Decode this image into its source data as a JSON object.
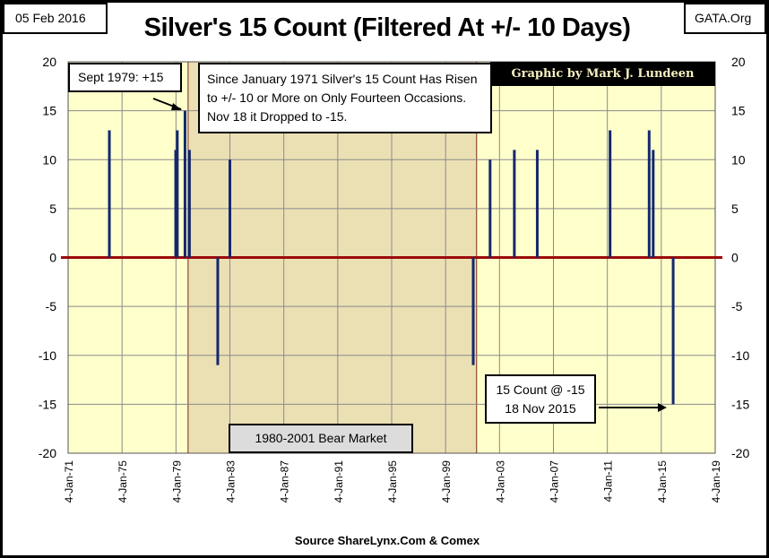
{
  "chart_data": {
    "type": "bar",
    "title": "Silver's 15 Count (Filtered At +/- 10 Days)",
    "date_label": "05 Feb 2016",
    "site_label": "GATA.Org",
    "credit": "Graphic by Mark J. Lundeen",
    "source": "Source ShareLynx.Com & Comex",
    "xlabel": "",
    "ylabel": "",
    "xlim": [
      1971,
      2019
    ],
    "ylim": [
      -20,
      20
    ],
    "yticks": [
      20,
      15,
      10,
      5,
      0,
      -5,
      -10,
      -15,
      -20
    ],
    "xtick_labels": [
      "4-Jan-71",
      "4-Jan-75",
      "4-Jan-79",
      "4-Jan-83",
      "4-Jan-87",
      "4-Jan-91",
      "4-Jan-95",
      "4-Jan-99",
      "4-Jan-03",
      "4-Jan-07",
      "4-Jan-11",
      "4-Jan-15",
      "4-Jan-19"
    ],
    "grid": true,
    "series": [
      {
        "name": "15 Count",
        "color": "#14286e",
        "points": [
          {
            "x": 1974.06,
            "y": 13
          },
          {
            "x": 1978.98,
            "y": 11
          },
          {
            "x": 1979.1,
            "y": 13
          },
          {
            "x": 1979.67,
            "y": 15
          },
          {
            "x": 1980.0,
            "y": 11
          },
          {
            "x": 1982.1,
            "y": -11
          },
          {
            "x": 1983.0,
            "y": 10
          },
          {
            "x": 2001.05,
            "y": -11
          },
          {
            "x": 2002.3,
            "y": 10
          },
          {
            "x": 2004.1,
            "y": 11
          },
          {
            "x": 2005.8,
            "y": 11
          },
          {
            "x": 2011.2,
            "y": 13
          },
          {
            "x": 2014.1,
            "y": 13
          },
          {
            "x": 2014.4,
            "y": 11
          },
          {
            "x": 2015.88,
            "y": -15
          }
        ]
      }
    ],
    "shaded_region": {
      "label": "1980-2001 Bear Market",
      "from": 1979.9,
      "to": 2001.3,
      "color": "#ebe0b4"
    },
    "plot_bg": "#ffffcc",
    "zero_line_color": "#9b0a0a",
    "annotations": {
      "sept_1979": "Sept 1979: +15",
      "summary": "Since January 1971 Silver's 15 Count Has Risen to +/- 10 or More on Only Fourteen Occasions.   Nov 18 it Dropped to -15.",
      "latest_line1": "15 Count @ -15",
      "latest_line2": "18 Nov 2015"
    }
  }
}
